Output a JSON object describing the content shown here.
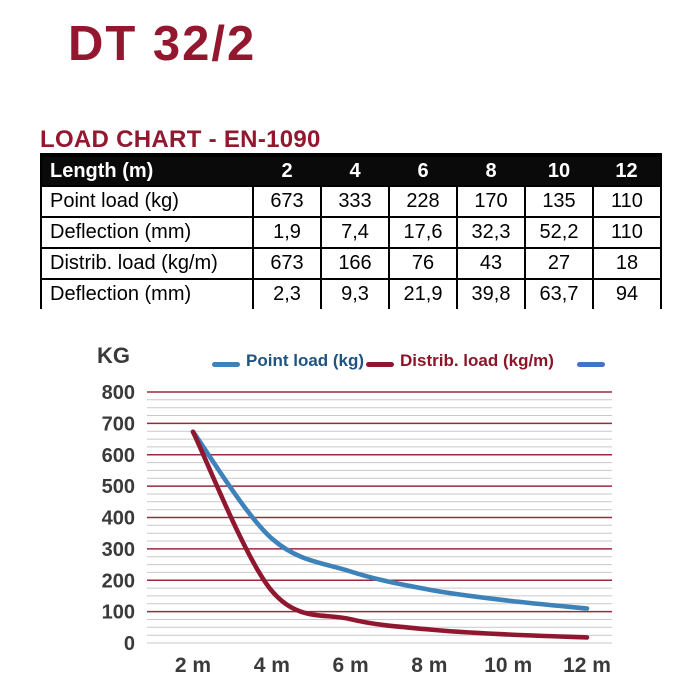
{
  "page": {
    "product_title": "DT 32/2",
    "section_heading": "LOAD CHART - EN-1090"
  },
  "table": {
    "header": [
      "Length (m)",
      "2",
      "4",
      "6",
      "8",
      "10",
      "12"
    ],
    "rows": [
      {
        "label": "Point load (kg)",
        "values": [
          "673",
          "333",
          "228",
          "170",
          "135",
          "110"
        ]
      },
      {
        "label": "Deflection (mm)",
        "values": [
          "1,9",
          "7,4",
          "17,6",
          "32,3",
          "52,2",
          "110"
        ]
      },
      {
        "label": "Distrib. load (kg/m)",
        "values": [
          "673",
          "166",
          "76",
          "43",
          "27",
          "18"
        ]
      },
      {
        "label": "Deflection (mm)",
        "values": [
          "2,3",
          "9,3",
          "21,9",
          "39,8",
          "63,7",
          "94"
        ]
      }
    ]
  },
  "chart_data": {
    "type": "line",
    "y_unit_label": "KG",
    "categories": [
      "2 m",
      "4 m",
      "6 m",
      "8 m",
      "10 m",
      "12 m"
    ],
    "x_values": [
      2,
      4,
      6,
      8,
      10,
      12
    ],
    "series": [
      {
        "name": "Point load (kg)",
        "color": "#3e82ba",
        "label_color": "#1f5380",
        "values": [
          673,
          333,
          228,
          170,
          135,
          110
        ]
      },
      {
        "name": "Distrib. load (kg/m)",
        "color": "#8f1830",
        "label_color": "#8a1628",
        "values": [
          673,
          166,
          76,
          43,
          27,
          18
        ]
      }
    ],
    "extra_legend_dash_color": "#4472c4",
    "ylim": [
      0,
      800
    ],
    "y_tick_labels": [
      "0",
      "100",
      "200",
      "300",
      "400",
      "500",
      "600",
      "700",
      "800"
    ],
    "grid": {
      "major_every": 100,
      "minor_every": 25,
      "major_color": "#9a2a3e",
      "minor_color": "#c9c9c9"
    },
    "legend_position": "top",
    "axis_label_color": "#3a3a3a"
  },
  "colors": {
    "brand_maroon": "#93182f",
    "table_header_bg": "#0a0a0a",
    "table_header_text": "#ffffff",
    "background": "#ffffff"
  }
}
